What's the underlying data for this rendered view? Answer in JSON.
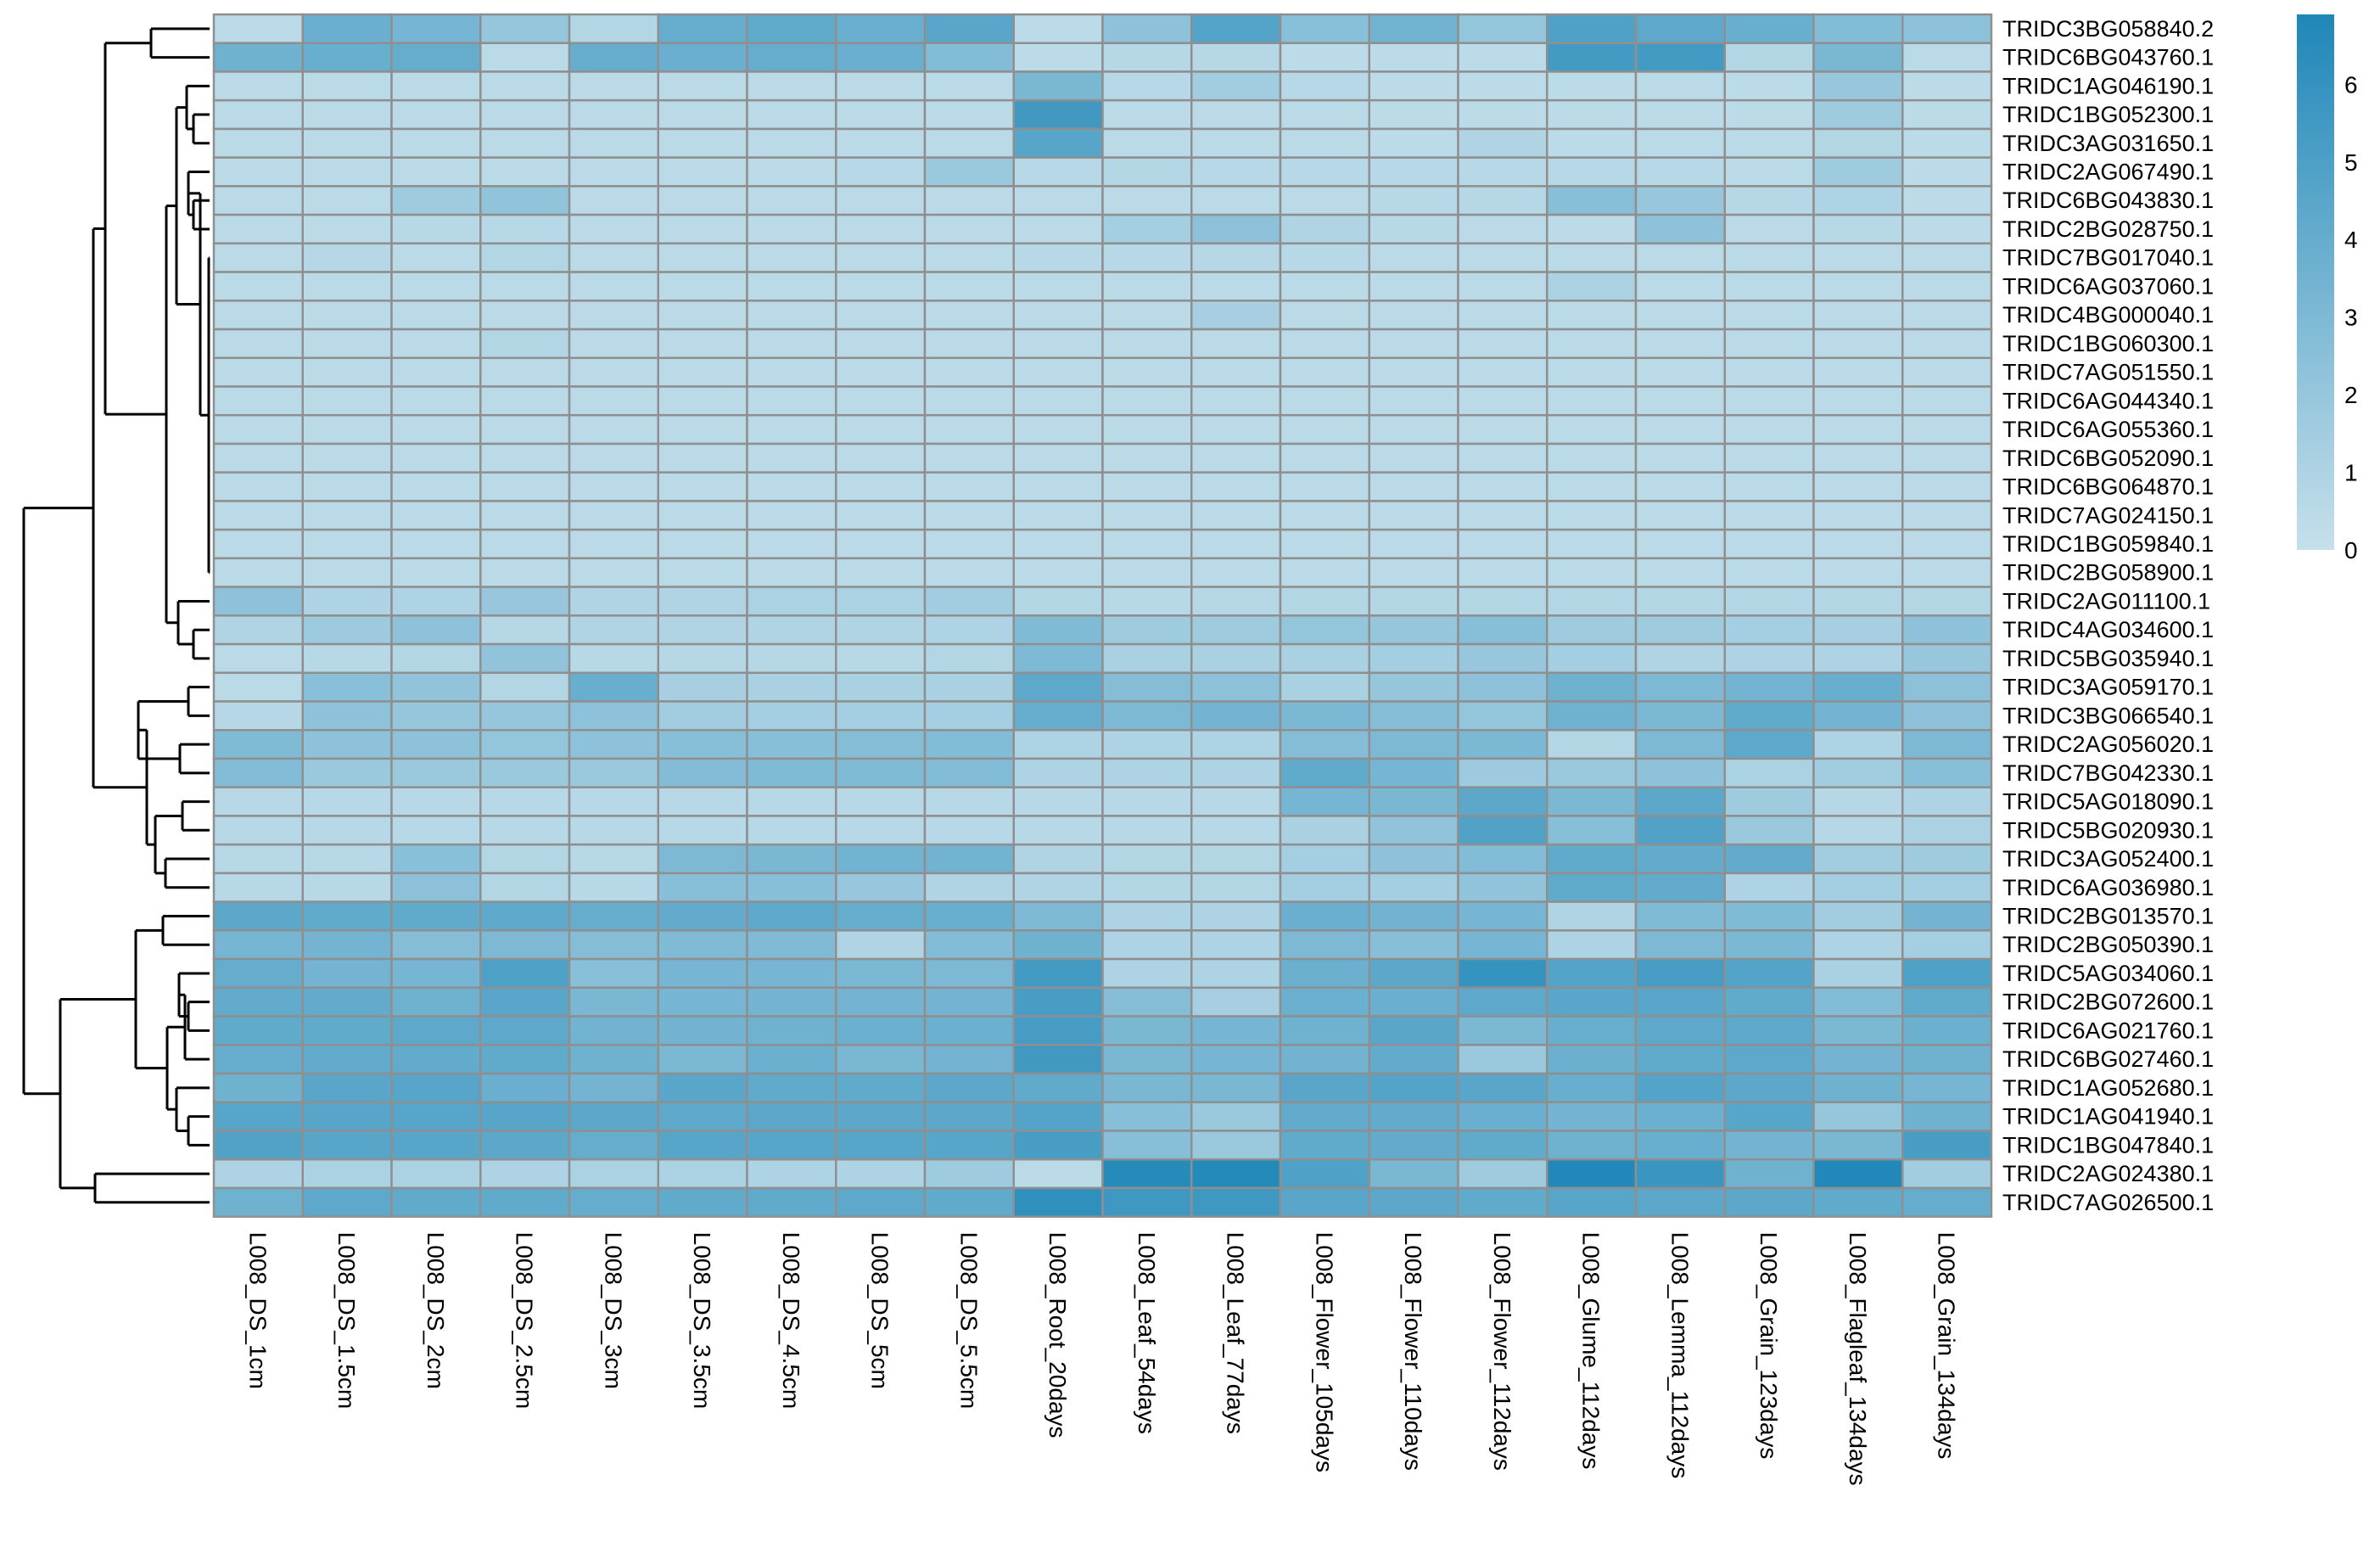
{
  "chart_data": {
    "type": "heatmap",
    "title": "",
    "xlabel": "",
    "ylabel": "",
    "columns": [
      "L008_DS_1cm",
      "L008_DS_1.5cm",
      "L008_DS_2cm",
      "L008_DS_2.5cm",
      "L008_DS_3cm",
      "L008_DS_3.5cm",
      "L008_DS_4.5cm",
      "L008_DS_5cm",
      "L008_DS_5.5cm",
      "L008_Root_20days",
      "L008_Leaf_54days",
      "L008_Leaf_77days",
      "L008_Flower_105days",
      "L008_Flower_110days",
      "L008_Flower_112days",
      "L008_Glume_112days",
      "L008_Lemma_112days",
      "L008_Grain_123days",
      "L008_Flagleaf_134days",
      "L008_Grain_134days"
    ],
    "rows": [
      "TRIDC3BG058840.2",
      "TRIDC6BG043760.1",
      "TRIDC1AG046190.1",
      "TRIDC1BG052300.1",
      "TRIDC3AG031650.1",
      "TRIDC2AG067490.1",
      "TRIDC6BG043830.1",
      "TRIDC2BG028750.1",
      "TRIDC7BG017040.1",
      "TRIDC6AG037060.1",
      "TRIDC4BG000040.1",
      "TRIDC1BG060300.1",
      "TRIDC7AG051550.1",
      "TRIDC6AG044340.1",
      "TRIDC6AG055360.1",
      "TRIDC6BG052090.1",
      "TRIDC6BG064870.1",
      "TRIDC7AG024150.1",
      "TRIDC1BG059840.1",
      "TRIDC2BG058900.1",
      "TRIDC2AG011100.1",
      "TRIDC4AG034600.1",
      "TRIDC5BG035940.1",
      "TRIDC3AG059170.1",
      "TRIDC3BG066540.1",
      "TRIDC2AG056020.1",
      "TRIDC7BG042330.1",
      "TRIDC5AG018090.1",
      "TRIDC5BG020930.1",
      "TRIDC3AG052400.1",
      "TRIDC6AG036980.1",
      "TRIDC2BG013570.1",
      "TRIDC2BG050390.1",
      "TRIDC5AG034060.1",
      "TRIDC2BG072600.1",
      "TRIDC6AG021760.1",
      "TRIDC6BG027460.1",
      "TRIDC1AG052680.1",
      "TRIDC1AG041940.1",
      "TRIDC1BG047840.1",
      "TRIDC2AG024380.1",
      "TRIDC7AG026500.1"
    ],
    "values": [
      [
        0.5,
        3.8,
        3.3,
        2,
        0.8,
        4,
        4.2,
        3.8,
        4.5,
        0.5,
        2.3,
        4.7,
        2.5,
        3.5,
        2.1,
        4.9,
        4.3,
        3.9,
        2.8,
        2.4
      ],
      [
        3.6,
        3.9,
        4,
        0.5,
        4,
        3.8,
        4,
        3.8,
        2.8,
        0.4,
        0.7,
        0.7,
        0.4,
        0.4,
        0.4,
        5.4,
        5.4,
        0.8,
        3.2,
        0.5
      ],
      [
        0.5,
        0.5,
        0.5,
        0.5,
        0.5,
        0.5,
        0.5,
        0.5,
        0.5,
        3.2,
        0.6,
        1.5,
        0.6,
        0.4,
        0.4,
        0.4,
        0.5,
        0.4,
        1.9,
        0.4
      ],
      [
        0.5,
        0.5,
        0.5,
        0.5,
        0.5,
        0.5,
        0.5,
        0.5,
        0.5,
        5.5,
        0.5,
        0.5,
        0.5,
        0.4,
        0.4,
        0.4,
        0.4,
        0.4,
        1.6,
        0.4
      ],
      [
        0.5,
        0.5,
        0.5,
        0.5,
        0.5,
        0.5,
        0.5,
        0.5,
        0.5,
        4.6,
        0.5,
        0.5,
        0.5,
        0.4,
        0.9,
        0.4,
        0.5,
        0.5,
        0.8,
        0.4
      ],
      [
        0.5,
        0.5,
        0.5,
        0.5,
        0.5,
        0.5,
        0.5,
        0.6,
        1.8,
        0.6,
        0.8,
        0.6,
        0.6,
        0.6,
        0.6,
        0.6,
        0.6,
        0.5,
        1.6,
        0.4
      ],
      [
        0.5,
        0.5,
        1.6,
        2.2,
        0.5,
        0.5,
        0.5,
        0.5,
        0.5,
        0.5,
        0.5,
        0.5,
        0.5,
        0.6,
        0.7,
        2.6,
        1.9,
        0.7,
        1,
        0.4
      ],
      [
        0.5,
        0.5,
        0.6,
        0.6,
        0.5,
        0.5,
        0.5,
        0.5,
        0.5,
        0.5,
        1.4,
        2.4,
        0.9,
        0.6,
        0.5,
        0.4,
        2.3,
        0.5,
        0.6,
        0.4
      ],
      [
        0.5,
        0.7,
        0.5,
        0.8,
        0.5,
        0.5,
        0.5,
        0.5,
        0.5,
        0.6,
        0.6,
        0.7,
        0.6,
        0.5,
        0.5,
        0.5,
        0.5,
        0.5,
        0.5,
        0.5
      ],
      [
        0.5,
        0.5,
        0.5,
        0.5,
        0.5,
        0.5,
        0.5,
        0.5,
        0.5,
        0.5,
        0.5,
        0.5,
        0.5,
        0.5,
        0.5,
        1.1,
        0.5,
        0.5,
        0.5,
        0.5
      ],
      [
        0.5,
        0.5,
        0.5,
        0.5,
        0.5,
        0.5,
        0.5,
        0.5,
        0.5,
        0.5,
        0.5,
        1.3,
        0.5,
        0.5,
        0.5,
        0.5,
        0.5,
        0.5,
        0.5,
        0.5
      ],
      [
        0.5,
        0.5,
        0.5,
        0.8,
        0.5,
        0.5,
        0.5,
        0.5,
        0.5,
        0.5,
        0.5,
        0.5,
        0.5,
        0.5,
        0.5,
        0.5,
        0.5,
        0.5,
        0.5,
        0.5
      ],
      [
        0.5,
        0.5,
        0.5,
        0.5,
        0.5,
        0.5,
        0.5,
        0.5,
        0.5,
        0.5,
        0.5,
        0.5,
        0.5,
        0.5,
        0.5,
        0.5,
        0.5,
        0.5,
        0.5,
        0.5
      ],
      [
        0.5,
        0.5,
        0.5,
        0.5,
        0.5,
        0.5,
        0.5,
        0.5,
        0.5,
        0.5,
        0.5,
        0.5,
        0.5,
        0.5,
        0.5,
        0.5,
        0.5,
        0.5,
        0.5,
        0.5
      ],
      [
        0.5,
        0.5,
        0.5,
        0.5,
        0.5,
        0.5,
        0.5,
        0.5,
        0.5,
        0.5,
        0.5,
        0.5,
        0.5,
        0.5,
        0.5,
        0.5,
        0.5,
        0.5,
        0.5,
        0.5
      ],
      [
        0.5,
        0.5,
        0.5,
        0.5,
        0.5,
        0.5,
        0.5,
        0.5,
        0.5,
        0.5,
        0.5,
        0.5,
        0.5,
        0.5,
        0.5,
        0.5,
        0.5,
        0.5,
        0.5,
        0.5
      ],
      [
        0.5,
        0.5,
        0.5,
        0.5,
        0.5,
        0.5,
        0.5,
        0.5,
        0.5,
        0.5,
        0.5,
        0.5,
        0.5,
        0.5,
        0.5,
        0.5,
        0.5,
        0.5,
        0.5,
        0.5
      ],
      [
        0.5,
        0.5,
        0.5,
        0.5,
        0.5,
        0.5,
        0.5,
        0.5,
        0.5,
        0.5,
        0.5,
        0.5,
        0.5,
        0.5,
        0.5,
        0.5,
        0.5,
        0.5,
        0.5,
        0.5
      ],
      [
        0.5,
        0.5,
        0.5,
        0.5,
        0.5,
        0.5,
        0.5,
        0.5,
        0.5,
        0.5,
        0.5,
        0.5,
        0.5,
        0.5,
        0.5,
        0.5,
        0.5,
        0.5,
        0.5,
        0.5
      ],
      [
        0.5,
        0.5,
        0.5,
        0.5,
        0.5,
        0.5,
        0.5,
        0.5,
        0.5,
        0.5,
        0.5,
        0.5,
        0.5,
        0.5,
        0.5,
        0.5,
        0.5,
        0.5,
        0.5,
        0.5
      ],
      [
        2.3,
        1,
        1,
        1.9,
        0.9,
        0.9,
        1.1,
        1.1,
        1.5,
        0.8,
        0.6,
        0.7,
        0.8,
        0.8,
        0.8,
        0.8,
        0.8,
        0.8,
        0.8,
        0.8
      ],
      [
        0.9,
        1.7,
        2.3,
        0.7,
        0.9,
        0.9,
        0.9,
        0.9,
        1,
        2.9,
        1.6,
        1.6,
        2.1,
        2,
        2.6,
        1.6,
        1.6,
        1.4,
        1.3,
        2.3
      ],
      [
        0.5,
        0.6,
        0.8,
        2.2,
        0.6,
        0.7,
        0.7,
        0.6,
        0.8,
        3,
        1.2,
        1.2,
        1.2,
        1.4,
        1.9,
        1.4,
        0.9,
        1,
        1,
        1.9
      ],
      [
        0.5,
        2.5,
        2.2,
        0.8,
        3.9,
        1.3,
        1.2,
        1.2,
        1.2,
        4.3,
        2.7,
        2.3,
        1.2,
        2,
        2.3,
        3.6,
        3,
        3.4,
        3.9,
        2.4
      ],
      [
        0.7,
        2.3,
        2,
        2,
        2.3,
        1.5,
        1.4,
        1.4,
        1.4,
        4,
        3,
        3.4,
        3.1,
        2.7,
        2.1,
        3.6,
        3.1,
        4.2,
        3.4,
        2.4
      ],
      [
        2.9,
        2.3,
        2.3,
        2.1,
        2.3,
        2.6,
        2.6,
        2.7,
        2.8,
        1,
        1,
        1,
        2.7,
        3,
        3.1,
        0.8,
        3,
        4.3,
        1,
        3
      ],
      [
        2.8,
        1.8,
        1.8,
        1.8,
        1.8,
        2.8,
        2.9,
        2.9,
        2.8,
        1,
        1,
        1,
        4.2,
        3.3,
        1.7,
        1.8,
        2.3,
        1.1,
        1.5,
        2.6
      ],
      [
        0.6,
        0.6,
        0.6,
        0.6,
        0.6,
        0.6,
        0.6,
        0.6,
        0.6,
        0.6,
        0.6,
        0.6,
        3.3,
        3.2,
        4.4,
        3.1,
        4.4,
        1.6,
        0.7,
        1
      ],
      [
        0.6,
        0.6,
        0.6,
        0.6,
        0.6,
        0.6,
        0.6,
        0.6,
        0.6,
        0.6,
        0.6,
        0.6,
        1.2,
        2.2,
        4.8,
        2.6,
        4.8,
        1.8,
        0.7,
        1.1
      ],
      [
        0.6,
        0.6,
        2.5,
        0.8,
        0.6,
        3,
        3.2,
        3.5,
        3.5,
        0.9,
        0.8,
        0.8,
        1.4,
        2.3,
        2.8,
        4.2,
        4.1,
        4.1,
        1.5,
        1.6
      ],
      [
        0.6,
        0.6,
        2.4,
        0.8,
        0.6,
        2.6,
        2.6,
        1.9,
        0.9,
        0.9,
        0.8,
        0.8,
        1.4,
        1.4,
        2.2,
        4.2,
        4.1,
        1,
        1.4,
        1.4
      ],
      [
        4.4,
        4.2,
        4.2,
        4.3,
        4,
        4.1,
        4.3,
        4,
        3.9,
        3,
        1,
        1,
        3.8,
        3.5,
        3.3,
        0.9,
        2.9,
        2.9,
        1.5,
        3.4
      ],
      [
        3.3,
        3.4,
        2.7,
        3,
        2.7,
        2.9,
        2.9,
        0.9,
        2.8,
        3.6,
        1,
        1,
        3,
        2.6,
        3.3,
        1,
        3,
        3.1,
        1,
        1.4
      ],
      [
        4,
        3.4,
        3.3,
        5,
        2.5,
        3.3,
        3.3,
        3.1,
        3,
        5.4,
        1,
        1,
        3.7,
        4.4,
        6,
        4.7,
        5.3,
        4.7,
        1.2,
        5
      ],
      [
        4.1,
        4.1,
        3.6,
        4.5,
        3.2,
        3.3,
        3.4,
        3.4,
        3.4,
        5.2,
        2.7,
        1.3,
        3.7,
        3.8,
        4.3,
        4.5,
        4.5,
        4.2,
        2.8,
        4.2
      ],
      [
        4.2,
        4.2,
        4.3,
        4.3,
        3.5,
        3.5,
        3.6,
        3.7,
        3.7,
        5.3,
        3.2,
        3.3,
        3.6,
        4.5,
        3.1,
        3.9,
        4.3,
        4.3,
        3.1,
        3.7
      ],
      [
        4,
        4.1,
        4.1,
        4.2,
        3.6,
        3.1,
        3.7,
        3.2,
        3.4,
        5.5,
        3.2,
        3.3,
        3.5,
        4.1,
        1.8,
        3.7,
        4.2,
        4.3,
        3.4,
        3.6
      ],
      [
        3.6,
        4.5,
        4.6,
        3.8,
        3.4,
        4.5,
        4.2,
        4.2,
        4.4,
        4.2,
        3.2,
        3.2,
        4.5,
        4.7,
        4.5,
        3.9,
        4.7,
        4.4,
        3.6,
        3.3
      ],
      [
        4.6,
        4.6,
        4.6,
        4.6,
        4.4,
        4.3,
        4.4,
        4.4,
        4.4,
        4.7,
        2.6,
        1.8,
        4.1,
        4.1,
        3.8,
        3.4,
        3.7,
        4.6,
        2,
        3.6
      ],
      [
        4.8,
        4.6,
        4.6,
        4.4,
        4,
        4.6,
        4.6,
        4.6,
        4.6,
        5.2,
        2.6,
        1.8,
        4.2,
        4.1,
        4.2,
        3.6,
        3.9,
        3.4,
        3.2,
        5.2
      ],
      [
        1,
        1.1,
        1.1,
        1,
        1.1,
        1.1,
        1,
        1,
        1.6,
        0.5,
        6.6,
        6.7,
        4.9,
        3.2,
        1.6,
        6.8,
        5.8,
        3.6,
        6.8,
        1.5
      ],
      [
        3.6,
        4.3,
        4.2,
        4.2,
        4,
        4.2,
        4.2,
        4.3,
        4.2,
        6.2,
        5.6,
        5.6,
        4.5,
        4.4,
        4.2,
        4.6,
        4.4,
        4.4,
        4.2,
        4
      ]
    ],
    "color_scale": {
      "low": "#c6e0eb",
      "high": "#1f87b8",
      "min": 0,
      "max": 6.9,
      "ticks": [
        "0",
        "1",
        "2",
        "3",
        "4",
        "5",
        "6"
      ],
      "position": "right"
    },
    "cell_border_color": "#8f8f8f",
    "dendrogram_color": "#000000"
  }
}
